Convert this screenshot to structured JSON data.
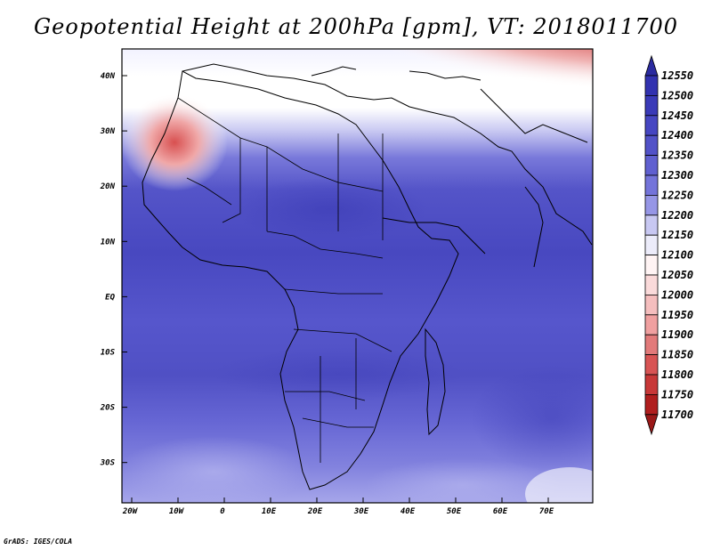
{
  "title": "Geopotential Height at 200hPa [gpm], VT: 2018011700",
  "credit": "GrADS: IGES/COLA",
  "lon_labels": [
    "20W",
    "10W",
    "0",
    "10E",
    "20E",
    "30E",
    "40E",
    "50E",
    "60E",
    "70E"
  ],
  "lat_labels": [
    "40N",
    "30N",
    "20N",
    "10N",
    "EQ",
    "10S",
    "20S",
    "30S"
  ],
  "colorbar": {
    "levels": [
      "12550",
      "12500",
      "12450",
      "12400",
      "12350",
      "12300",
      "12250",
      "12200",
      "12150",
      "12100",
      "12050",
      "12000",
      "11950",
      "11900",
      "11850",
      "11800",
      "11750",
      "11700"
    ],
    "colors": [
      "#2b2ba0",
      "#3232b0",
      "#3a3ab8",
      "#4646c2",
      "#5252c8",
      "#6060d0",
      "#7474da",
      "#9696e6",
      "#c8c8f2",
      "#ececfa",
      "#fff4f4",
      "#fadada",
      "#f5bebe",
      "#f0a0a0",
      "#e27a7a",
      "#d85454",
      "#c83838",
      "#b01e1e",
      "#9a1818"
    ]
  },
  "colors": {
    "deep_blue": "#3c3cb6",
    "blue": "#5a5ad0",
    "light_blue": "#9a9ae8",
    "white": "#f5f5ff",
    "red": "#b01e1e"
  }
}
